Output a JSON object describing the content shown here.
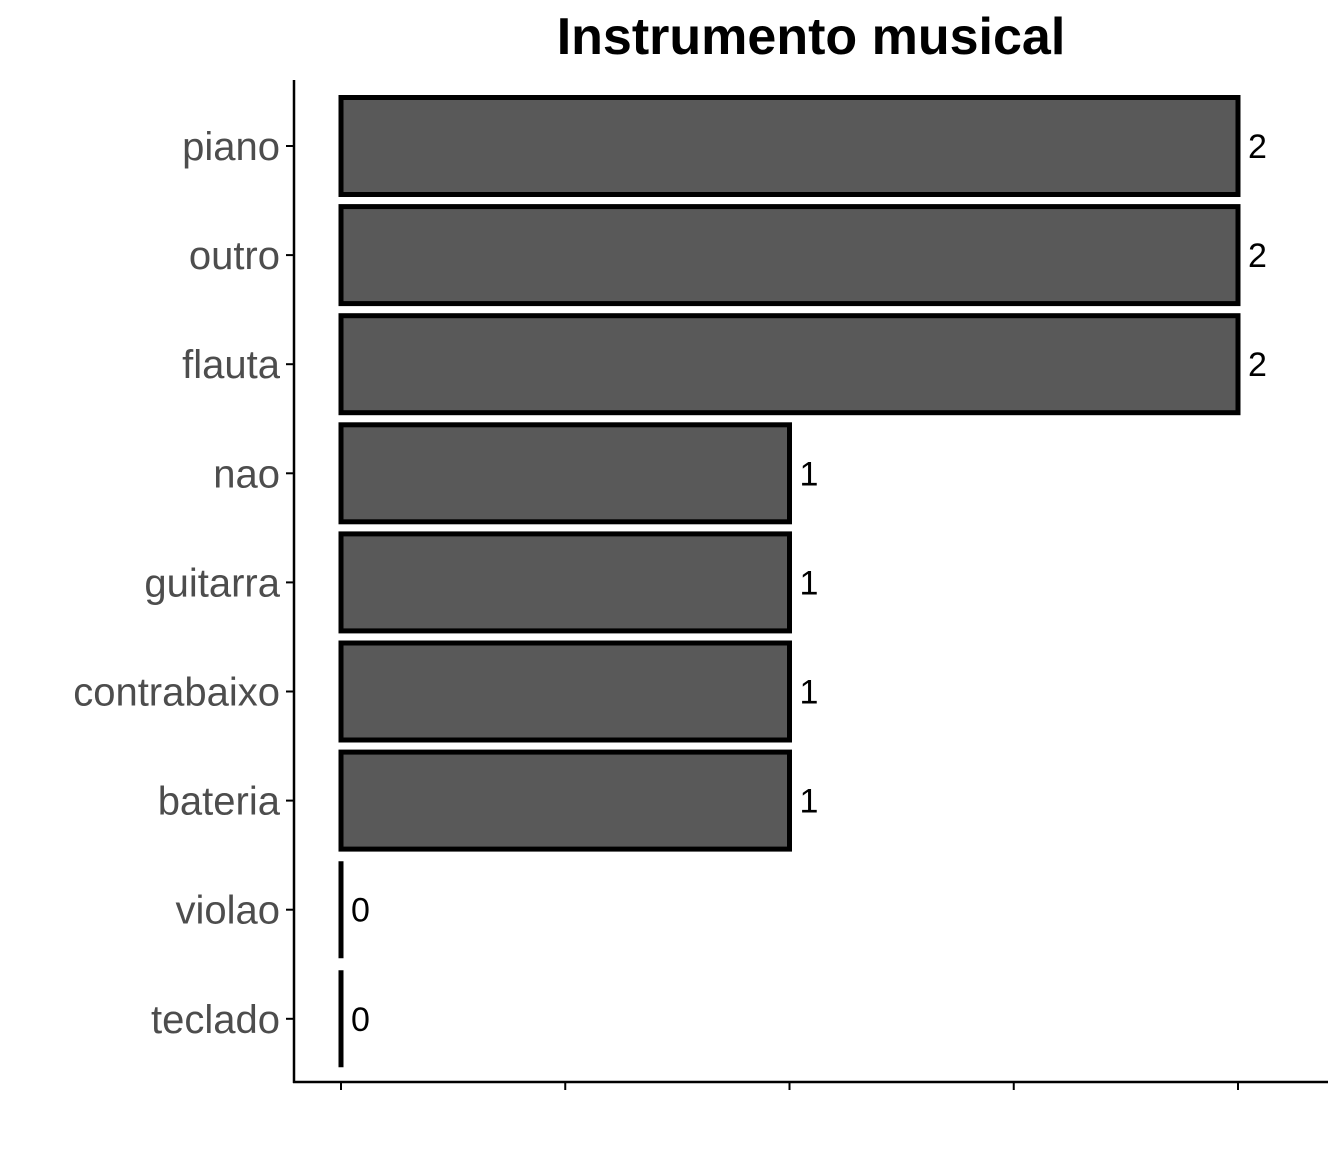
{
  "chart_data": {
    "type": "bar",
    "orientation": "horizontal",
    "title": "Instrumento musical",
    "xlabel": "",
    "ylabel": "",
    "categories": [
      "piano",
      "outro",
      "flauta",
      "nao",
      "guitarra",
      "contrabaixo",
      "bateria",
      "violao",
      "teclado"
    ],
    "values": [
      2,
      2,
      2,
      1,
      1,
      1,
      1,
      0,
      0
    ],
    "data_labels": [
      "2",
      "2",
      "2",
      "1",
      "1",
      "1",
      "1",
      "0",
      "0"
    ],
    "xlim": [
      0,
      2
    ],
    "x_ticks": [
      0,
      0.5,
      1,
      1.5,
      2
    ],
    "x_tick_labels_shown": false,
    "grid": false,
    "legend": "none",
    "colors": {
      "bar_fill": "#595959",
      "bar_stroke": "#000000",
      "axis": "#000000",
      "category_text": "#4d4d4d"
    }
  }
}
